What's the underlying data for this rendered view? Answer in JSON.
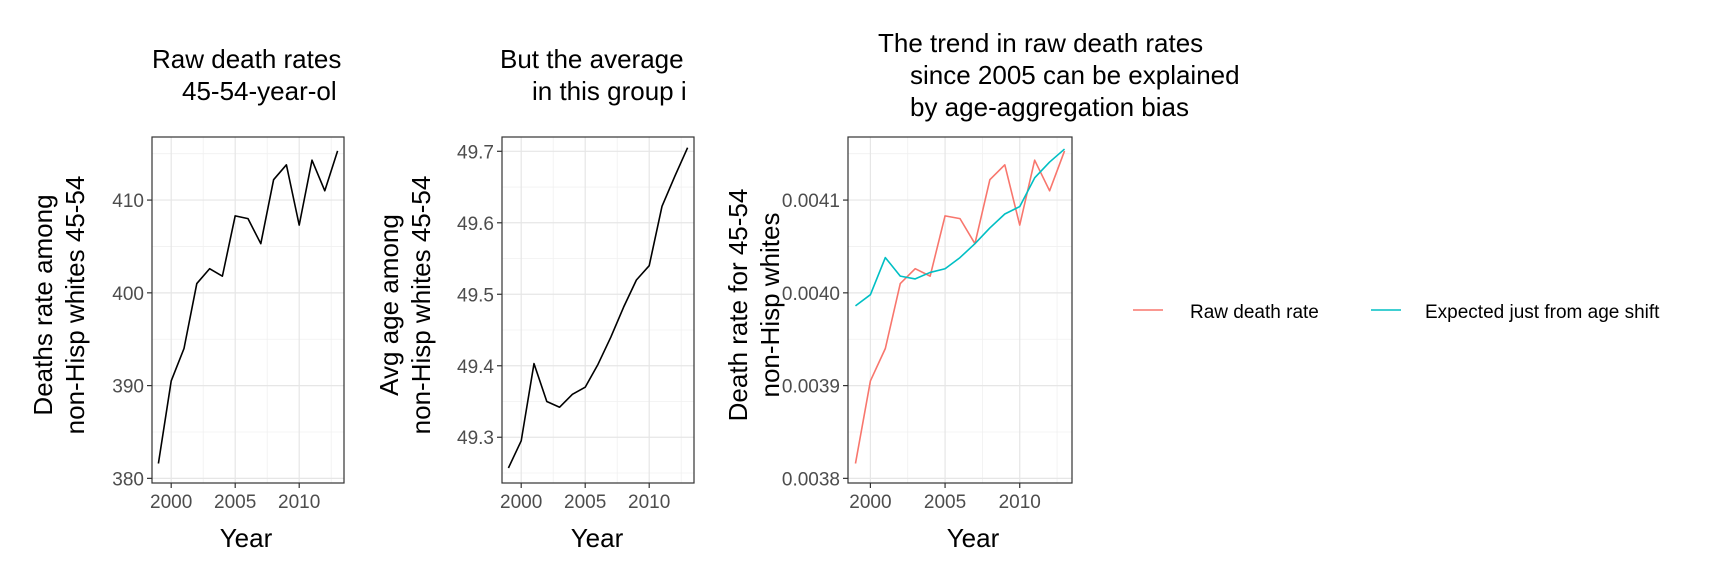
{
  "chart_data": [
    {
      "type": "line",
      "title_lines": [
        "Raw death rates",
        "45-54-year-ol"
      ],
      "xlabel": "Year",
      "ylabel_lines": [
        "Deaths rate among",
        "non-Hisp whites 45-54"
      ],
      "xlim": [
        1998.5,
        2013.5
      ],
      "ylim": [
        379.5,
        416.8
      ],
      "xticks": [
        {
          "v": 2000,
          "label": "2000"
        },
        {
          "v": 2005,
          "label": "2005"
        },
        {
          "v": 2010,
          "label": "2010"
        }
      ],
      "yticks": [
        {
          "v": 380,
          "label": "380"
        },
        {
          "v": 390,
          "label": "390"
        },
        {
          "v": 400,
          "label": "400"
        },
        {
          "v": 410,
          "label": "410"
        }
      ],
      "grid": true,
      "series": [
        {
          "color": "#000000",
          "x": [
            1999,
            2000,
            2001,
            2002,
            2003,
            2004,
            2005,
            2006,
            2007,
            2008,
            2009,
            2010,
            2011,
            2012,
            2013
          ],
          "y": [
            381.6,
            390.5,
            394.0,
            401.0,
            402.6,
            401.8,
            408.3,
            408.0,
            405.3,
            412.2,
            413.8,
            407.3,
            414.3,
            411.0,
            415.3
          ]
        }
      ]
    },
    {
      "type": "line",
      "title_lines": [
        "But the average",
        "in this group i"
      ],
      "xlabel": "Year",
      "ylabel_lines": [
        "Avg age among",
        "non-Hisp whites 45-54"
      ],
      "xlim": [
        1998.5,
        2013.5
      ],
      "ylim": [
        49.236,
        49.72
      ],
      "xticks": [
        {
          "v": 2000,
          "label": "2000"
        },
        {
          "v": 2005,
          "label": "2005"
        },
        {
          "v": 2010,
          "label": "2010"
        }
      ],
      "yticks": [
        {
          "v": 49.3,
          "label": "49.3"
        },
        {
          "v": 49.4,
          "label": "49.4"
        },
        {
          "v": 49.5,
          "label": "49.5"
        },
        {
          "v": 49.6,
          "label": "49.6"
        },
        {
          "v": 49.7,
          "label": "49.7"
        }
      ],
      "grid": true,
      "series": [
        {
          "color": "#000000",
          "x": [
            1999,
            2000,
            2001,
            2002,
            2003,
            2004,
            2005,
            2006,
            2007,
            2008,
            2009,
            2010,
            2011,
            2012,
            2013
          ],
          "y": [
            49.257,
            49.295,
            49.403,
            49.35,
            49.342,
            49.36,
            49.37,
            49.402,
            49.44,
            49.482,
            49.52,
            49.54,
            49.623,
            49.665,
            49.705
          ]
        }
      ]
    },
    {
      "type": "line",
      "title_lines": [
        "The trend in raw death rates",
        "since 2005 can be explained",
        "by age-aggregation bias"
      ],
      "xlabel": "Year",
      "ylabel_lines": [
        "Death rate for 45-54",
        "non-Hisp whites"
      ],
      "xlim": [
        1998.5,
        2013.5
      ],
      "ylim": [
        0.003795,
        0.004168
      ],
      "xticks": [
        {
          "v": 2000,
          "label": "2000"
        },
        {
          "v": 2005,
          "label": "2005"
        },
        {
          "v": 2010,
          "label": "2010"
        }
      ],
      "yticks": [
        {
          "v": 0.0038,
          "label": "0.0038"
        },
        {
          "v": 0.0039,
          "label": "0.0039"
        },
        {
          "v": 0.004,
          "label": "0.0040"
        },
        {
          "v": 0.0041,
          "label": "0.0041"
        }
      ],
      "grid": true,
      "legend_position": "right",
      "series": [
        {
          "name": "Raw death rate",
          "color": "#F8766D",
          "x": [
            1999,
            2000,
            2001,
            2002,
            2003,
            2004,
            2005,
            2006,
            2007,
            2008,
            2009,
            2010,
            2011,
            2012,
            2013
          ],
          "y": [
            0.003816,
            0.003905,
            0.00394,
            0.00401,
            0.004026,
            0.004018,
            0.004083,
            0.00408,
            0.004053,
            0.004122,
            0.004138,
            0.004073,
            0.004143,
            0.00411,
            0.004153
          ]
        },
        {
          "name": "Expected just from age shift",
          "color": "#00BFC4",
          "x": [
            1999,
            2000,
            2001,
            2002,
            2003,
            2004,
            2005,
            2006,
            2007,
            2008,
            2009,
            2010,
            2011,
            2012,
            2013
          ],
          "y": [
            0.003986,
            0.003998,
            0.004038,
            0.004018,
            0.004015,
            0.004022,
            0.004026,
            0.004038,
            0.004053,
            0.00407,
            0.004085,
            0.004093,
            0.004124,
            0.004141,
            0.004155
          ]
        }
      ]
    }
  ]
}
